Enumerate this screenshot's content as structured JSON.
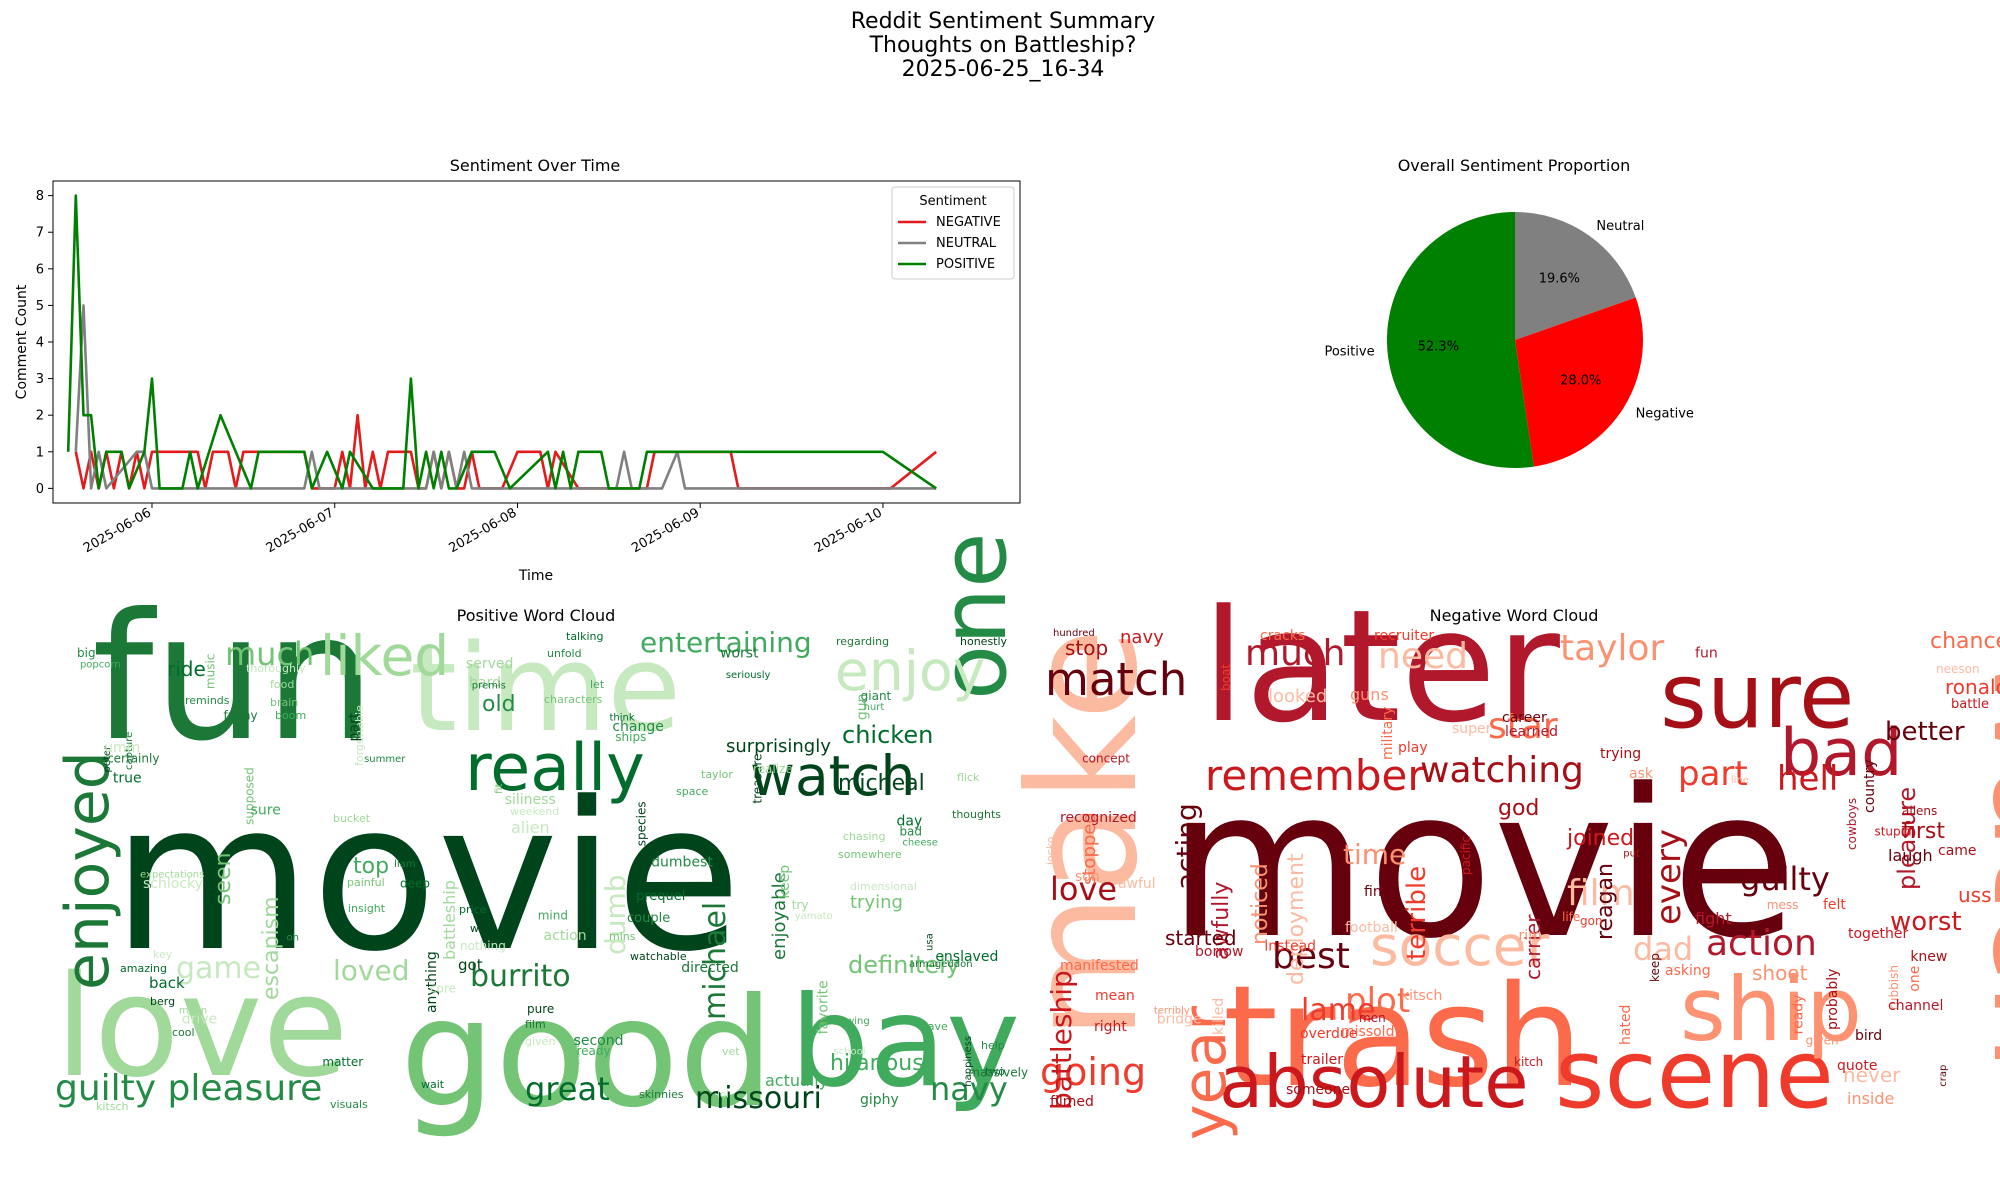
{
  "figure": {
    "suptitle": [
      "Reddit Sentiment Summary",
      "Thoughts on Battleship?",
      "2025-06-25_16-34"
    ]
  },
  "colors": {
    "NEGATIVE": "#e41a1c",
    "NEUTRAL": "#808080",
    "POSITIVE": "#008000",
    "pie_negative": "#ff0000",
    "pie_neutral": "#808080",
    "pie_positive": "#008000"
  },
  "chart_data": [
    {
      "type": "line",
      "title": "Sentiment Over Time",
      "xlabel": "Time",
      "ylabel": "Comment Count",
      "x_range": [
        "2025-06-05 11:00",
        "2025-06-10 18:00"
      ],
      "ylim": [
        -0.4,
        8.4
      ],
      "yticks": [
        0,
        1,
        2,
        3,
        4,
        5,
        6,
        7,
        8
      ],
      "xticks": [
        "2025-06-06",
        "2025-06-07",
        "2025-06-08",
        "2025-06-09",
        "2025-06-10"
      ],
      "grid": false,
      "legend": {
        "title": "Sentiment",
        "placement": "upper right",
        "entries": [
          "NEGATIVE",
          "NEUTRAL",
          "POSITIVE"
        ]
      },
      "series": [
        {
          "name": "NEGATIVE",
          "points": [
            [
              "2025-06-05 14:00",
              1
            ],
            [
              "2025-06-05 15:00",
              0
            ],
            [
              "2025-06-05 16:00",
              1
            ],
            [
              "2025-06-05 17:00",
              0
            ],
            [
              "2025-06-05 18:00",
              1
            ],
            [
              "2025-06-05 19:00",
              0
            ],
            [
              "2025-06-05 20:00",
              1
            ],
            [
              "2025-06-05 21:00",
              0
            ],
            [
              "2025-06-05 22:00",
              1
            ],
            [
              "2025-06-05 23:00",
              0
            ],
            [
              "2025-06-06 00:00",
              1
            ],
            [
              "2025-06-06 06:00",
              1
            ],
            [
              "2025-06-06 07:00",
              0
            ],
            [
              "2025-06-06 08:00",
              1
            ],
            [
              "2025-06-06 10:00",
              1
            ],
            [
              "2025-06-06 11:00",
              0
            ],
            [
              "2025-06-06 12:00",
              1
            ],
            [
              "2025-06-06 20:00",
              1
            ],
            [
              "2025-06-06 21:00",
              0
            ],
            [
              "2025-06-07 00:00",
              0
            ],
            [
              "2025-06-07 01:00",
              1
            ],
            [
              "2025-06-07 02:00",
              0
            ],
            [
              "2025-06-07 03:00",
              2
            ],
            [
              "2025-06-07 04:00",
              0
            ],
            [
              "2025-06-07 05:00",
              1
            ],
            [
              "2025-06-07 06:00",
              0
            ],
            [
              "2025-06-07 07:00",
              1
            ],
            [
              "2025-06-07 10:00",
              1
            ],
            [
              "2025-06-07 11:00",
              0
            ],
            [
              "2025-06-07 12:00",
              0
            ],
            [
              "2025-06-07 13:00",
              1
            ],
            [
              "2025-06-07 14:00",
              0
            ],
            [
              "2025-06-07 15:00",
              1
            ],
            [
              "2025-06-07 16:00",
              0
            ],
            [
              "2025-06-07 17:00",
              0
            ],
            [
              "2025-06-07 18:00",
              1
            ],
            [
              "2025-06-07 19:00",
              0
            ],
            [
              "2025-06-07 22:00",
              0
            ],
            [
              "2025-06-08 00:00",
              1
            ],
            [
              "2025-06-08 03:00",
              1
            ],
            [
              "2025-06-08 04:00",
              0
            ],
            [
              "2025-06-08 05:00",
              1
            ],
            [
              "2025-06-08 08:00",
              0
            ],
            [
              "2025-06-08 17:00",
              0
            ],
            [
              "2025-06-08 18:00",
              1
            ],
            [
              "2025-06-09 04:00",
              1
            ],
            [
              "2025-06-09 05:00",
              0
            ],
            [
              "2025-06-10 01:00",
              0
            ],
            [
              "2025-06-10 07:00",
              1
            ]
          ]
        },
        {
          "name": "NEUTRAL",
          "points": [
            [
              "2025-06-05 14:00",
              1
            ],
            [
              "2025-06-05 15:00",
              5
            ],
            [
              "2025-06-05 16:00",
              0
            ],
            [
              "2025-06-05 17:00",
              1
            ],
            [
              "2025-06-05 18:00",
              0
            ],
            [
              "2025-06-05 22:00",
              1
            ],
            [
              "2025-06-05 23:00",
              1
            ],
            [
              "2025-06-06 00:00",
              0
            ],
            [
              "2025-06-06 20:00",
              0
            ],
            [
              "2025-06-06 21:00",
              1
            ],
            [
              "2025-06-06 22:00",
              0
            ],
            [
              "2025-06-07 12:00",
              0
            ],
            [
              "2025-06-07 13:00",
              1
            ],
            [
              "2025-06-07 14:00",
              0
            ],
            [
              "2025-06-07 15:00",
              1
            ],
            [
              "2025-06-07 16:00",
              0
            ],
            [
              "2025-06-07 17:00",
              1
            ],
            [
              "2025-06-07 18:00",
              0
            ],
            [
              "2025-06-08 13:00",
              0
            ],
            [
              "2025-06-08 14:00",
              1
            ],
            [
              "2025-06-08 15:00",
              0
            ],
            [
              "2025-06-08 19:00",
              0
            ],
            [
              "2025-06-08 21:00",
              1
            ],
            [
              "2025-06-08 22:00",
              0
            ],
            [
              "2025-06-10 07:00",
              0
            ]
          ]
        },
        {
          "name": "POSITIVE",
          "points": [
            [
              "2025-06-05 13:00",
              1
            ],
            [
              "2025-06-05 14:00",
              8
            ],
            [
              "2025-06-05 15:00",
              2
            ],
            [
              "2025-06-05 16:00",
              2
            ],
            [
              "2025-06-05 17:00",
              0
            ],
            [
              "2025-06-05 18:00",
              1
            ],
            [
              "2025-06-05 20:00",
              1
            ],
            [
              "2025-06-05 21:00",
              0
            ],
            [
              "2025-06-05 23:00",
              1
            ],
            [
              "2025-06-06 00:00",
              3
            ],
            [
              "2025-06-06 01:00",
              0
            ],
            [
              "2025-06-06 04:00",
              0
            ],
            [
              "2025-06-06 05:00",
              1
            ],
            [
              "2025-06-06 06:00",
              0
            ],
            [
              "2025-06-06 09:00",
              2
            ],
            [
              "2025-06-06 13:00",
              0
            ],
            [
              "2025-06-06 14:00",
              1
            ],
            [
              "2025-06-06 20:00",
              1
            ],
            [
              "2025-06-06 21:00",
              0
            ],
            [
              "2025-06-06 23:00",
              1
            ],
            [
              "2025-06-07 01:00",
              0
            ],
            [
              "2025-06-07 02:00",
              1
            ],
            [
              "2025-06-07 05:00",
              0
            ],
            [
              "2025-06-07 09:00",
              0
            ],
            [
              "2025-06-07 10:00",
              3
            ],
            [
              "2025-06-07 11:00",
              0
            ],
            [
              "2025-06-07 12:00",
              1
            ],
            [
              "2025-06-07 13:00",
              0
            ],
            [
              "2025-06-07 14:00",
              1
            ],
            [
              "2025-06-07 15:00",
              0
            ],
            [
              "2025-06-07 16:00",
              0
            ],
            [
              "2025-06-07 18:00",
              1
            ],
            [
              "2025-06-07 21:00",
              1
            ],
            [
              "2025-06-07 23:00",
              0
            ],
            [
              "2025-06-08 04:00",
              1
            ],
            [
              "2025-06-08 05:00",
              0
            ],
            [
              "2025-06-08 06:00",
              1
            ],
            [
              "2025-06-08 07:00",
              0
            ],
            [
              "2025-06-08 08:00",
              1
            ],
            [
              "2025-06-08 11:00",
              1
            ],
            [
              "2025-06-08 12:00",
              0
            ],
            [
              "2025-06-08 16:00",
              0
            ],
            [
              "2025-06-08 17:00",
              1
            ],
            [
              "2025-06-09 00:00",
              1
            ],
            [
              "2025-06-09 12:00",
              1
            ],
            [
              "2025-06-10 00:00",
              1
            ],
            [
              "2025-06-10 07:00",
              0
            ]
          ]
        }
      ]
    },
    {
      "type": "pie",
      "title": "Overall Sentiment Proportion",
      "labels": [
        "Neutral",
        "Negative",
        "Positive"
      ],
      "values": [
        19.6,
        28.0,
        52.3
      ],
      "value_labels": [
        "19.6%",
        "28.0%",
        "52.3%"
      ]
    },
    {
      "type": "wordcloud",
      "title": "Positive Word Cloud",
      "words": [
        "movie",
        "fun",
        "time",
        "love",
        "good",
        "bay",
        "one",
        "really",
        "watch",
        "enjoyed",
        "enjoy",
        "liked",
        "much",
        "entertaining",
        "guilty pleasure",
        "great",
        "missouri",
        "burrito",
        "game",
        "loved",
        "definitely",
        "hilarious",
        "navy",
        "chicken",
        "micheal",
        "michael",
        "dumb",
        "escapism",
        "seen",
        "top",
        "old",
        "ride",
        "surprisingly",
        "enjoyable",
        "alien",
        "battleship",
        "trying",
        "actually",
        "giphy",
        "back",
        "got",
        "armageddon",
        "dimensional",
        "chasing",
        "somewhere",
        "popcorn",
        "couple",
        "prequel",
        "watchable",
        "funny",
        "nothing",
        "hard",
        "characters",
        "let",
        "unfold",
        "talking",
        "honestly",
        "regarding",
        "thoroughly",
        "food",
        "brain",
        "boom",
        "reminds",
        "seriously",
        "treasure",
        "thoughts",
        "school",
        "flick",
        "taylor",
        "space",
        "big",
        "true",
        "thing",
        "capture",
        "forgettable",
        "bucket",
        "painful",
        "insight",
        "summer",
        "deep",
        "anything",
        "premis",
        "weekend",
        "action",
        "ticket",
        "ships",
        "dumbest",
        "amazing",
        "berg",
        "cool",
        "yamato",
        "kitsch",
        "gun",
        "cheese",
        "visuals",
        "wait",
        "peter",
        "skinnies",
        "drive",
        "vet",
        "supposed",
        "save",
        "help",
        "two",
        "pure",
        "film",
        "given",
        "siliness",
        "mins",
        "ready",
        "change",
        "price",
        "wife",
        "worst",
        "key",
        "try",
        "favorite",
        "hurt",
        "bad",
        "enslaved",
        "happiness",
        "certainly",
        "schlocky",
        "mean",
        "music",
        "sure",
        "oh",
        "matter",
        "part",
        "liam",
        "core",
        "served",
        "fit",
        "mind",
        "second",
        "think",
        "species",
        "directed",
        "lol",
        "realize",
        "keep",
        "following",
        "giant",
        "day",
        "usa",
        "massively",
        "umm",
        "expectations"
      ]
    },
    {
      "type": "wordcloud",
      "title": "Negative Word Cloud",
      "words": [
        "movie",
        "later",
        "make",
        "watch",
        "trash",
        "scene",
        "absolute",
        "sure",
        "match",
        "bad",
        "soccer",
        "ship",
        "year",
        "going",
        "remember",
        "watching",
        "best",
        "much",
        "need",
        "taylor",
        "star",
        "part",
        "hell",
        "every",
        "guilty",
        "action",
        "film",
        "time",
        "plot",
        "lame",
        "battleship",
        "love",
        "acting",
        "awfully",
        "deployment",
        "noticed",
        "stopped",
        "terrible",
        "joined",
        "god",
        "better",
        "pleasure",
        "dad",
        "shoot",
        "one",
        "uss",
        "worst",
        "first",
        "laugh",
        "fight",
        "never",
        "inside",
        "chance",
        "ronald",
        "battle",
        "aliens",
        "reagan",
        "carrier",
        "football",
        "kitsch",
        "missold",
        "overdue",
        "trailer",
        "someone",
        "final",
        "men",
        "looked",
        "guns",
        "cracks",
        "recruiter",
        "navy",
        "stop",
        "hundred",
        "recognized",
        "jocko",
        "son",
        "manifested",
        "mean",
        "right",
        "filmed",
        "started",
        "borrow",
        "killed",
        "rim",
        "military",
        "play",
        "pacific",
        "trying",
        "career",
        "learned",
        "super",
        "given",
        "asking",
        "felt",
        "together",
        "probably",
        "country",
        "cowboys",
        "bridge",
        "rubbish",
        "hated",
        "instead",
        "quote",
        "came",
        "bird",
        "channel",
        "neeson",
        "ask",
        "life",
        "gon",
        "kitch",
        "put",
        "keep",
        "fun",
        "line",
        "mess",
        "ready",
        "boat",
        "stupid",
        "knew",
        "crap",
        "concept",
        "awful",
        "terribly"
      ]
    }
  ]
}
